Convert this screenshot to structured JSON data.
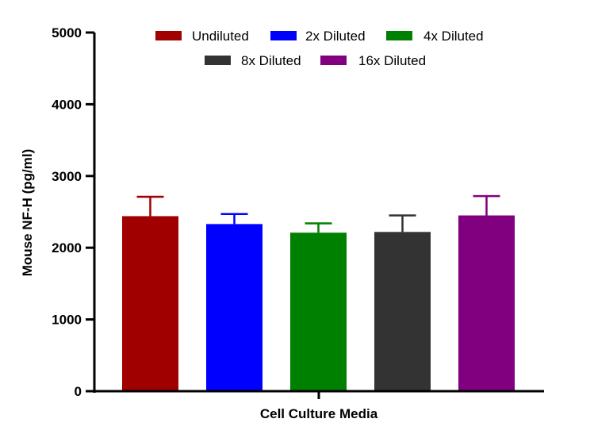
{
  "chart_data": {
    "type": "bar",
    "title": "",
    "xlabel": "Cell Culture Media",
    "ylabel": "Mouse NF-H (pg/ml)",
    "ylim": [
      0,
      5000
    ],
    "yticks": [
      "0",
      "1000",
      "2000",
      "3000",
      "4000",
      "5000"
    ],
    "grid": false,
    "legend_position": "top",
    "series": [
      {
        "name": "Undiluted",
        "value": 2440,
        "error": 270,
        "color": "#a00000"
      },
      {
        "name": "2x Diluted",
        "value": 2330,
        "error": 140,
        "color": "#0000ff"
      },
      {
        "name": "4x Diluted",
        "value": 2210,
        "error": 130,
        "color": "#008000"
      },
      {
        "name": "8x Diluted",
        "value": 2220,
        "error": 230,
        "color": "#333333"
      },
      {
        "name": "16x Diluted",
        "value": 2450,
        "error": 270,
        "color": "#800080"
      }
    ]
  }
}
